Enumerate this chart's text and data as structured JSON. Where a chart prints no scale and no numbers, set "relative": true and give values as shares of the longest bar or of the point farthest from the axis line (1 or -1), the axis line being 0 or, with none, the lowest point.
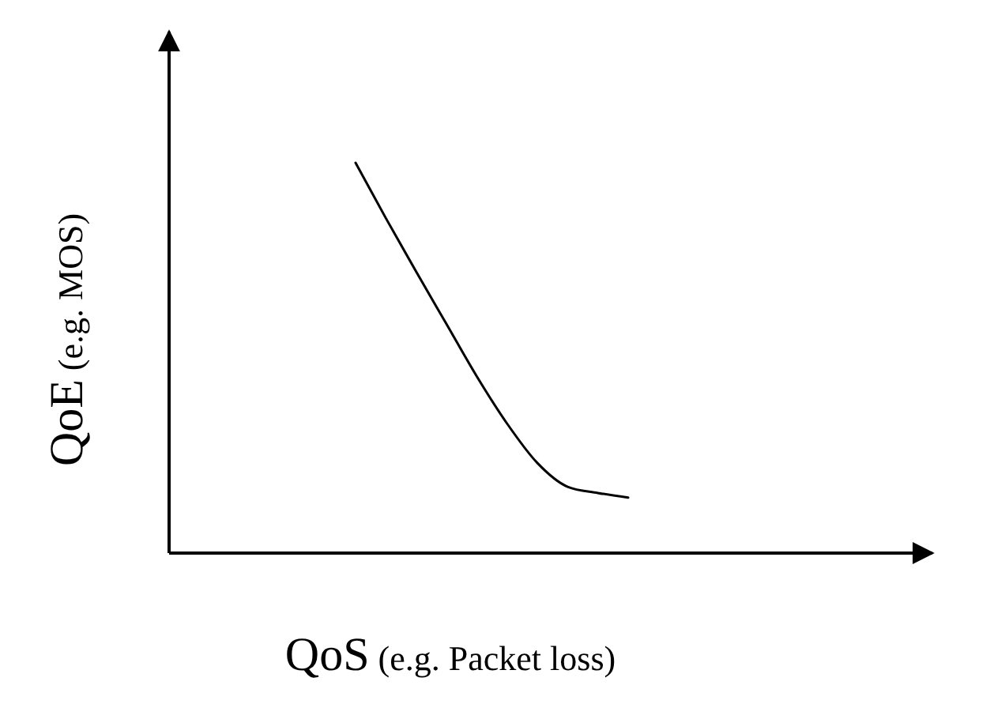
{
  "chart_data": {
    "type": "line",
    "relative": true,
    "xlabel": "QoS (e.g. Packet loss)",
    "ylabel": "QoE (e.g. MOS)",
    "categories": [
      null,
      null,
      null,
      null,
      null,
      null,
      null,
      null,
      null,
      null,
      null,
      null,
      null,
      null,
      null,
      null,
      null,
      null,
      null,
      null,
      null,
      null,
      null,
      null,
      null
    ],
    "series": [
      {
        "color": "#000000",
        "values": [
          null,
          null,
          null,
          null,
          null,
          null,
          1,
          0.858,
          0.721,
          0.587,
          0.453,
          0.332,
          0.231,
          0.17,
          0.154,
          0.142,
          null,
          null,
          null,
          null,
          null,
          null,
          null,
          null,
          null
        ]
      }
    ]
  }
}
